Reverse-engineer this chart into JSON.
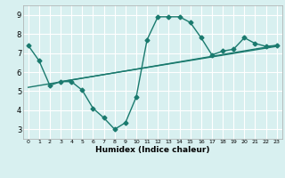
{
  "title": "",
  "xlabel": "Humidex (Indice chaleur)",
  "bg_color": "#d8f0f0",
  "line_color": "#1a7a6e",
  "grid_color": "#ffffff",
  "xlim": [
    -0.5,
    23.5
  ],
  "ylim": [
    2.5,
    9.5
  ],
  "xticks": [
    0,
    1,
    2,
    3,
    4,
    5,
    6,
    7,
    8,
    9,
    10,
    11,
    12,
    13,
    14,
    15,
    16,
    17,
    18,
    19,
    20,
    21,
    22,
    23
  ],
  "yticks": [
    3,
    4,
    5,
    6,
    7,
    8,
    9
  ],
  "curve_x": [
    0,
    1,
    2,
    3,
    4,
    5,
    6,
    7,
    8,
    9,
    10,
    11,
    12,
    13,
    14,
    15,
    16,
    17,
    18,
    19,
    20,
    21,
    22,
    23
  ],
  "curve_y": [
    7.4,
    6.6,
    5.3,
    5.5,
    5.5,
    5.05,
    4.1,
    3.6,
    3.0,
    3.35,
    4.7,
    7.7,
    8.9,
    8.9,
    8.9,
    8.6,
    7.8,
    6.9,
    7.1,
    7.2,
    7.8,
    7.5,
    7.35,
    7.4
  ],
  "line1_x": [
    0,
    23
  ],
  "line1_y": [
    5.2,
    7.4
  ],
  "line2_x": [
    3,
    23
  ],
  "line2_y": [
    5.5,
    7.35
  ],
  "marker_size": 2.5,
  "linewidth": 1.0
}
